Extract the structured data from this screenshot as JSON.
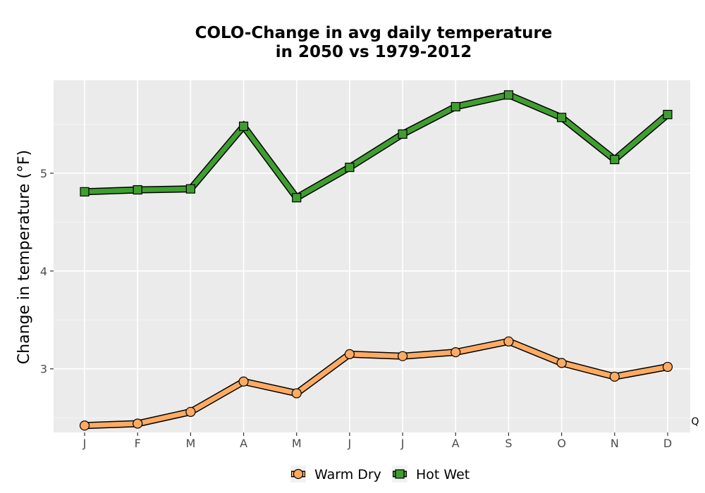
{
  "chart_data": {
    "type": "line",
    "title": [
      "COLO-Change in avg daily temperature",
      "in 2050 vs 1979-2012"
    ],
    "xlabel": "",
    "ylabel": "Change in temperature (°F)",
    "categories": [
      "J",
      "F",
      "M",
      "A",
      "M",
      "J",
      "J",
      "A",
      "S",
      "O",
      "N",
      "D"
    ],
    "ylim": [
      2.35,
      5.95
    ],
    "yticks": [
      3,
      4,
      5
    ],
    "grid": true,
    "legend_position": "bottom",
    "corner_note": "Q",
    "series": [
      {
        "name": "Warm Dry",
        "marker": "circle",
        "fill": "#fdab63",
        "values": [
          2.42,
          2.44,
          2.56,
          2.87,
          2.75,
          3.15,
          3.13,
          3.17,
          3.28,
          3.06,
          2.92,
          3.02
        ]
      },
      {
        "name": "Hot Wet",
        "marker": "square",
        "fill": "#3f9e2f",
        "values": [
          4.81,
          4.83,
          4.84,
          5.48,
          4.75,
          5.06,
          5.4,
          5.68,
          5.8,
          5.57,
          5.14,
          5.6
        ]
      }
    ]
  }
}
